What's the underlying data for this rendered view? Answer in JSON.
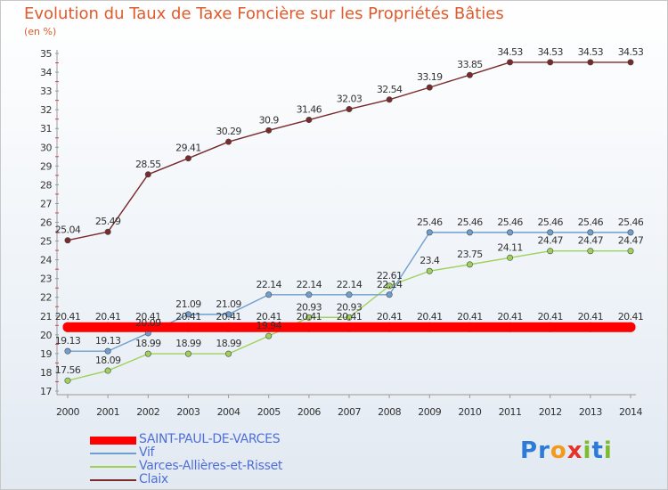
{
  "title": "Evolution du Taux de Taxe Foncière sur les Propriétés Bâties",
  "unit_label": "(en %)",
  "logo": {
    "text": "Proxiti",
    "letters": [
      {
        "ch": "P",
        "color": "#2c7bd6"
      },
      {
        "ch": "r",
        "color": "#2c7bd6"
      },
      {
        "ch": "o",
        "color": "#f29a1d"
      },
      {
        "ch": "x",
        "color": "#e6332a"
      },
      {
        "ch": "i",
        "color": "#7dbb2f"
      },
      {
        "ch": "t",
        "color": "#2c7bd6"
      },
      {
        "ch": "i",
        "color": "#7dbb2f"
      }
    ]
  },
  "chart_data": {
    "type": "line",
    "title": "Evolution du Taux de Taxe Foncière sur les Propriétés Bâties",
    "ylabel": "(en %)",
    "xlabel": "",
    "ylim": [
      17,
      35
    ],
    "yticks": [
      17,
      18,
      19,
      20,
      21,
      22,
      23,
      24,
      25,
      26,
      27,
      28,
      29,
      30,
      31,
      32,
      33,
      34,
      35
    ],
    "categories": [
      "2000",
      "2001",
      "2002",
      "2003",
      "2004",
      "2005",
      "2006",
      "2007",
      "2008",
      "2009",
      "2010",
      "2011",
      "2012",
      "2013",
      "2014"
    ],
    "grid": false,
    "legend_position": "bottom-left",
    "series": [
      {
        "name": "SAINT-PAUL-DE-VARCES",
        "color": "#ff0000",
        "values": [
          20.41,
          20.41,
          20.41,
          20.41,
          20.41,
          20.41,
          20.41,
          20.41,
          20.41,
          20.41,
          20.41,
          20.41,
          20.41,
          20.41,
          20.41
        ],
        "labels": [
          "20.41",
          "20.41",
          "20.41",
          "20.41",
          "20.41",
          "20.41",
          "20.41",
          "20.41",
          "20.41",
          "20.41",
          "20.41",
          "20.41",
          "20.41",
          "20.41",
          "20.41"
        ]
      },
      {
        "name": "Vif",
        "color": "#6f9fd0",
        "values": [
          19.13,
          19.13,
          20.09,
          21.09,
          21.09,
          22.14,
          22.14,
          22.14,
          22.14,
          25.46,
          25.46,
          25.46,
          25.46,
          25.46,
          25.46
        ],
        "labels": [
          "19.13",
          "19.13",
          "20.09",
          "21.09",
          "21.09",
          "22.14",
          "22.14",
          "22.14",
          "22.14",
          "25.46",
          "25.46",
          "25.46",
          "25.46",
          "25.46",
          "25.46"
        ]
      },
      {
        "name": "Varces-Allières-et-Risset",
        "color": "#9fd15a",
        "values": [
          17.56,
          18.09,
          18.99,
          18.99,
          18.99,
          19.94,
          20.93,
          20.93,
          22.61,
          23.4,
          23.75,
          24.11,
          24.47,
          24.47,
          24.47
        ],
        "labels": [
          "17.56",
          "18.09",
          "18.99",
          "18.99",
          "18.99",
          "19.94",
          "20.93",
          "20.93",
          "22.61",
          "23.4",
          "23.75",
          "24.11",
          "24.47",
          "24.47",
          "24.47"
        ]
      },
      {
        "name": "Claix",
        "color": "#7a2a2a",
        "values": [
          25.04,
          25.49,
          28.55,
          29.41,
          30.29,
          30.9,
          31.46,
          32.03,
          32.54,
          33.19,
          33.85,
          34.53,
          34.53,
          34.53,
          34.53
        ],
        "labels": [
          "25.04",
          "25.49",
          "28.55",
          "29.41",
          "30.29",
          "30.9",
          "31.46",
          "32.03",
          "32.54",
          "33.19",
          "33.85",
          "34.53",
          "34.53",
          "34.53",
          "34.53"
        ]
      }
    ]
  }
}
